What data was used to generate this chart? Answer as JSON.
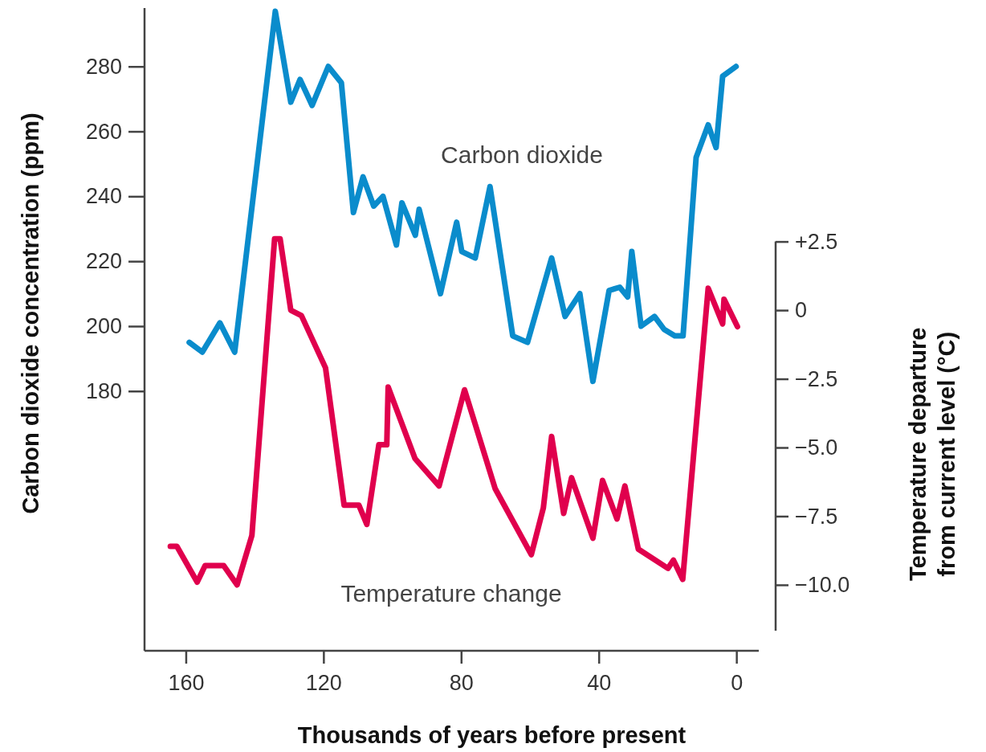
{
  "chart_data": {
    "type": "line",
    "xlabel": "Thousands of years before present",
    "ylabel": "Carbon dioxide concentration (ppm)",
    "y2label": "Temperature departure\nfrom current level (°C)",
    "xlim": [
      172,
      -6.5
    ],
    "xticks": [
      160,
      120,
      80,
      40,
      0
    ],
    "ylim": [
      100,
      298
    ],
    "yticks": [
      180,
      200,
      220,
      240,
      260,
      280
    ],
    "y2lim": [
      -12.4,
      11
    ],
    "y2ticks": [
      {
        "value": 2.5,
        "label": "+2.5"
      },
      {
        "value": 0,
        "label": "0"
      },
      {
        "value": -2.5,
        "label": "−2.5"
      },
      {
        "value": -5,
        "label": "−5.0"
      },
      {
        "value": -7.5,
        "label": "−7.5"
      },
      {
        "value": -10,
        "label": "−10.0"
      }
    ],
    "line_style": "solid",
    "marker": "none",
    "series": [
      {
        "name": "Carbon dioxide",
        "color": "#0a8ccc",
        "x": [
          159,
          155.2,
          150.1,
          145.8,
          134,
          129.5,
          126.8,
          123.3,
          118.6,
          114.8,
          111.3,
          108.5,
          105.4,
          102.7,
          98.8,
          97.2,
          93.3,
          92.2,
          86,
          81.3,
          79.8,
          75.9,
          71.6,
          65,
          60.7,
          53.7,
          49.8,
          45.5,
          41.7,
          37,
          33.9,
          31.6,
          30.4,
          27.7,
          23.8,
          21,
          17.9,
          15.5,
          11.7,
          8.2,
          5.9,
          4,
          0.1
        ],
        "values": [
          195,
          192,
          201,
          192,
          297,
          269,
          276,
          268,
          280,
          275,
          235,
          246,
          237,
          240,
          225,
          238,
          228,
          236,
          210,
          232,
          223,
          221,
          243,
          197,
          195,
          221,
          203,
          210,
          183,
          211,
          212,
          209,
          223,
          200,
          203,
          199,
          197,
          197,
          252,
          262,
          255,
          277,
          280
        ]
      },
      {
        "name": "Temperature change",
        "color": "#e0004d",
        "axis": "y2",
        "x": [
          164.5,
          162.6,
          156.7,
          154.4,
          149,
          145.1,
          140.8,
          134.2,
          132.6,
          129.5,
          126.4,
          119.4,
          114,
          109.7,
          107.4,
          103.9,
          101.6,
          101.2,
          93.4,
          86.4,
          79,
          70.1,
          59.6,
          56.1,
          53.7,
          50.2,
          47.9,
          41.7,
          38.9,
          34.7,
          32.4,
          28.5,
          19.9,
          18.3,
          15.6,
          8.2,
          4,
          3.6,
          -0.3
        ],
        "values": [
          -8.6,
          -8.6,
          -9.9,
          -9.3,
          -9.3,
          -10,
          -8.2,
          2.6,
          2.6,
          0,
          -0.2,
          -2.1,
          -7.1,
          -7.1,
          -7.8,
          -4.9,
          -4.9,
          -2.8,
          -5.4,
          -6.4,
          -2.9,
          -6.5,
          -8.9,
          -7.2,
          -4.6,
          -7.4,
          -6.1,
          -8.3,
          -6.2,
          -7.6,
          -6.4,
          -8.7,
          -9.4,
          -9.1,
          -9.8,
          0.8,
          -0.5,
          0.4,
          -0.6
        ]
      }
    ]
  }
}
